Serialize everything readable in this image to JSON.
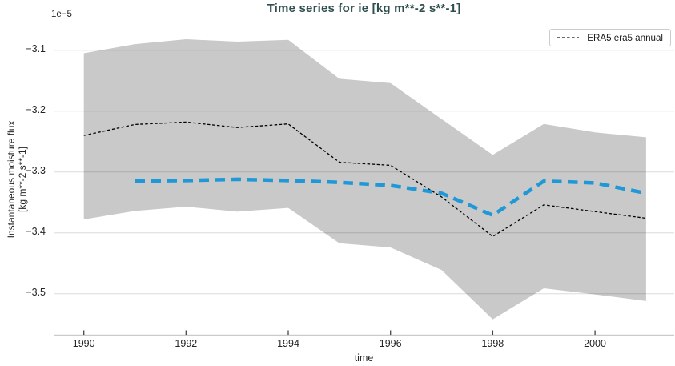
{
  "figure": {
    "title": "Time series for ie [kg m**-2 s**-1]",
    "offset_text": "1e−5",
    "ylabel_line1": "Instantaneous moisture flux",
    "ylabel_line2": "[kg m**-2 s**-1]",
    "xlabel": "time",
    "legend": {
      "label": "ERA5 era5 annual"
    }
  },
  "colors": {
    "title": "#2f4f4f",
    "band": "#c9c9c9",
    "era5_line": "#000000",
    "blue_line": "#1f98d8",
    "gridline": "rgba(0,0,0,0.14)",
    "spine": "#cbcbcb",
    "tick_mark": "#444444"
  },
  "chart_data": {
    "type": "line",
    "title": "Time series for ie [kg m**-2 s**-1]",
    "xlabel": "time",
    "ylabel": "Instantaneous moisture flux [kg m**-2 s**-1]",
    "y_offset_factor": "1e-5",
    "xlim": [
      1989.41,
      2001.55
    ],
    "ylim": [
      -3.568,
      -3.059
    ],
    "grid": true,
    "legend_position": "upper right",
    "xticks": [
      1990,
      1992,
      1994,
      1996,
      1998,
      2000
    ],
    "xtick_labels": [
      "1990",
      "1992",
      "1994",
      "1996",
      "1998",
      "2000"
    ],
    "yticks": [
      -3.1,
      -3.2,
      -3.3,
      -3.4,
      -3.5
    ],
    "ytick_labels": [
      "−3.1",
      "−3.2",
      "−3.3",
      "−3.4",
      "−3.5"
    ],
    "band": {
      "id": "era5-uncertainty-band",
      "color": "#c9c9c9",
      "x": [
        1990,
        1991,
        1992,
        1993,
        1994,
        1995,
        1996,
        1997,
        1998,
        1999,
        2000,
        2001
      ],
      "upper": [
        -3.105,
        -3.09,
        -3.082,
        -3.086,
        -3.083,
        -3.147,
        -3.154,
        -3.213,
        -3.272,
        -3.221,
        -3.235,
        -3.243
      ],
      "lower": [
        -3.378,
        -3.364,
        -3.357,
        -3.365,
        -3.359,
        -3.417,
        -3.424,
        -3.461,
        -3.542,
        -3.491,
        -3.501,
        -3.512
      ]
    },
    "series": [
      {
        "id": "era5-annual",
        "name": "ERA5 era5 annual",
        "style": "dashed-thin",
        "color": "#000000",
        "x": [
          1990,
          1991,
          1992,
          1993,
          1994,
          1995,
          1996,
          1997,
          1998,
          1999,
          2000,
          2001
        ],
        "values": [
          -3.24,
          -3.222,
          -3.218,
          -3.227,
          -3.221,
          -3.284,
          -3.289,
          -3.341,
          -3.406,
          -3.354,
          -3.365,
          -3.376
        ]
      },
      {
        "id": "blue-dashed",
        "name": "",
        "style": "dashed-thick",
        "color": "#1f98d8",
        "x": [
          1991,
          1992,
          1993,
          1994,
          1995,
          1996,
          1997,
          1998,
          1999,
          2000,
          2001
        ],
        "values": [
          -3.315,
          -3.314,
          -3.312,
          -3.314,
          -3.317,
          -3.322,
          -3.335,
          -3.371,
          -3.315,
          -3.318,
          -3.335
        ]
      }
    ]
  }
}
